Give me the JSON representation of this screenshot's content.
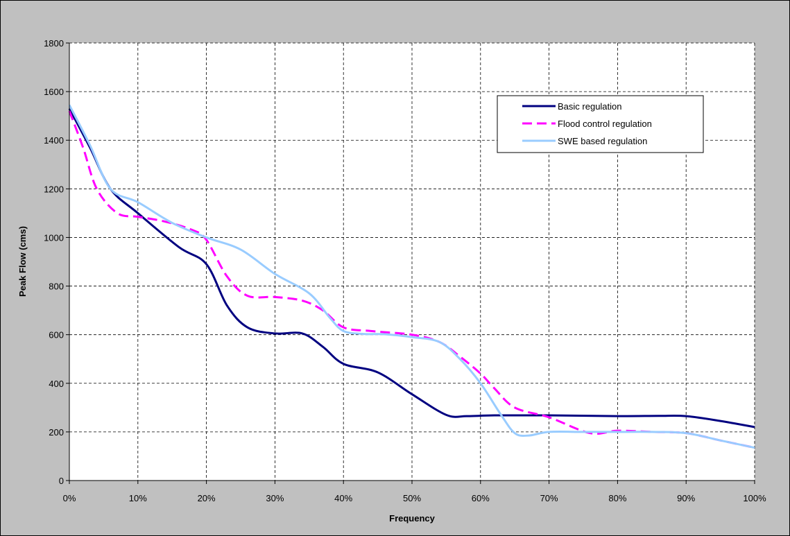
{
  "chart_data": {
    "type": "line",
    "title": "",
    "xlabel": "Frequency",
    "ylabel": "Peak Flow (cms)",
    "xlim": [
      0,
      100
    ],
    "ylim": [
      0,
      1800
    ],
    "x_ticks": [
      "0%",
      "10%",
      "20%",
      "30%",
      "40%",
      "50%",
      "60%",
      "70%",
      "80%",
      "90%",
      "100%"
    ],
    "y_ticks": [
      "0",
      "200",
      "400",
      "600",
      "800",
      "1000",
      "1200",
      "1400",
      "1600",
      "1800"
    ],
    "grid": true,
    "legend_position": "top-right",
    "series": [
      {
        "name": "Basic regulation",
        "color": "#000080",
        "style": "solid",
        "x": [
          0,
          3,
          6,
          10,
          16,
          20,
          23,
          26,
          30,
          34,
          37,
          40,
          45,
          50,
          55,
          58,
          62,
          70,
          80,
          86,
          90,
          95,
          100
        ],
        "y": [
          1530,
          1370,
          1200,
          1100,
          960,
          890,
          720,
          630,
          605,
          605,
          550,
          480,
          445,
          355,
          270,
          265,
          268,
          268,
          265,
          266,
          265,
          245,
          220
        ]
      },
      {
        "name": "Flood control regulation",
        "color": "#ff00ff",
        "style": "dashed",
        "x": [
          0,
          2,
          4,
          7,
          10,
          14,
          18,
          20,
          23,
          26,
          30,
          34,
          37,
          40,
          44,
          50,
          54,
          57,
          60,
          62,
          65,
          70,
          76,
          80,
          85,
          90,
          95,
          100
        ],
        "y": [
          1520,
          1370,
          1200,
          1100,
          1085,
          1065,
          1030,
          990,
          840,
          760,
          755,
          740,
          700,
          630,
          615,
          600,
          570,
          510,
          440,
          380,
          300,
          260,
          195,
          205,
          200,
          195,
          165,
          135
        ]
      },
      {
        "name": "SWE based regulation",
        "color": "#99ccff",
        "style": "solid",
        "x": [
          0,
          3,
          6,
          10,
          15,
          20,
          25,
          30,
          35,
          38,
          40,
          43,
          46,
          50,
          54,
          57,
          60,
          63,
          65,
          67,
          70,
          75,
          80,
          85,
          90,
          95,
          100
        ],
        "y": [
          1545,
          1380,
          1200,
          1145,
          1060,
          1000,
          950,
          850,
          770,
          670,
          615,
          603,
          602,
          590,
          570,
          500,
          400,
          270,
          195,
          185,
          200,
          200,
          200,
          200,
          195,
          165,
          135
        ]
      }
    ]
  }
}
